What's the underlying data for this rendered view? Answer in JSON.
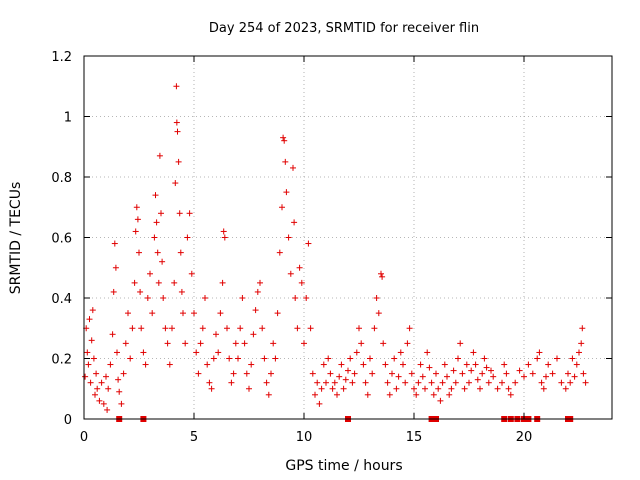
{
  "chart_data": {
    "type": "scatter",
    "title": "Day 254 of 2023, SRMTID for receiver flin",
    "xlabel": "GPS time / hours",
    "ylabel": "SRMTID / TECUs",
    "xlim": [
      0,
      24
    ],
    "ylim": [
      0,
      1.2
    ],
    "xticks": [
      0,
      5,
      10,
      15,
      20
    ],
    "xtick_labels": [
      "0",
      "5",
      "10",
      "15",
      "20"
    ],
    "yticks": [
      0,
      0.2,
      0.4,
      0.6,
      0.8,
      1.0,
      1.2
    ],
    "ytick_labels": [
      "0",
      "0.2",
      "0.4",
      "0.6",
      "0.8",
      "1",
      "1.2"
    ],
    "grid": true,
    "marker": "plus",
    "color": "#e00000",
    "series": [
      {
        "name": "SRMTID",
        "points": [
          [
            0.05,
            0.14
          ],
          [
            0.1,
            0.3
          ],
          [
            0.15,
            0.22
          ],
          [
            0.2,
            0.18
          ],
          [
            0.25,
            0.33
          ],
          [
            0.3,
            0.12
          ],
          [
            0.35,
            0.26
          ],
          [
            0.4,
            0.36
          ],
          [
            0.45,
            0.2
          ],
          [
            0.5,
            0.08
          ],
          [
            0.55,
            0.15
          ],
          [
            0.6,
            0.1
          ],
          [
            0.7,
            0.06
          ],
          [
            0.8,
            0.12
          ],
          [
            0.9,
            0.05
          ],
          [
            1.0,
            0.14
          ],
          [
            1.05,
            0.03
          ],
          [
            1.1,
            0.1
          ],
          [
            1.2,
            0.18
          ],
          [
            1.3,
            0.28
          ],
          [
            1.35,
            0.42
          ],
          [
            1.4,
            0.58
          ],
          [
            1.45,
            0.5
          ],
          [
            1.5,
            0.22
          ],
          [
            1.55,
            0.13
          ],
          [
            1.6,
            0.09
          ],
          [
            1.7,
            0.05
          ],
          [
            1.8,
            0.15
          ],
          [
            1.9,
            0.25
          ],
          [
            2.0,
            0.35
          ],
          [
            2.1,
            0.2
          ],
          [
            2.2,
            0.3
          ],
          [
            2.3,
            0.45
          ],
          [
            2.35,
            0.62
          ],
          [
            2.4,
            0.7
          ],
          [
            2.45,
            0.66
          ],
          [
            2.5,
            0.55
          ],
          [
            2.55,
            0.42
          ],
          [
            2.6,
            0.3
          ],
          [
            2.7,
            0.22
          ],
          [
            2.8,
            0.18
          ],
          [
            2.9,
            0.4
          ],
          [
            3.0,
            0.48
          ],
          [
            3.1,
            0.35
          ],
          [
            3.2,
            0.6
          ],
          [
            3.25,
            0.74
          ],
          [
            3.3,
            0.65
          ],
          [
            3.35,
            0.55
          ],
          [
            3.4,
            0.45
          ],
          [
            3.45,
            0.87
          ],
          [
            3.5,
            0.68
          ],
          [
            3.55,
            0.52
          ],
          [
            3.6,
            0.4
          ],
          [
            3.7,
            0.3
          ],
          [
            3.8,
            0.25
          ],
          [
            3.9,
            0.18
          ],
          [
            4.0,
            0.3
          ],
          [
            4.1,
            0.45
          ],
          [
            4.15,
            0.78
          ],
          [
            4.2,
            1.1
          ],
          [
            4.22,
            0.98
          ],
          [
            4.25,
            0.95
          ],
          [
            4.3,
            0.85
          ],
          [
            4.35,
            0.68
          ],
          [
            4.4,
            0.55
          ],
          [
            4.45,
            0.42
          ],
          [
            4.5,
            0.35
          ],
          [
            4.6,
            0.25
          ],
          [
            4.7,
            0.6
          ],
          [
            4.8,
            0.68
          ],
          [
            4.9,
            0.48
          ],
          [
            5.0,
            0.35
          ],
          [
            5.1,
            0.22
          ],
          [
            5.2,
            0.15
          ],
          [
            5.3,
            0.25
          ],
          [
            5.4,
            0.3
          ],
          [
            5.5,
            0.4
          ],
          [
            5.6,
            0.18
          ],
          [
            5.7,
            0.12
          ],
          [
            5.8,
            0.1
          ],
          [
            5.9,
            0.2
          ],
          [
            6.0,
            0.28
          ],
          [
            6.1,
            0.22
          ],
          [
            6.2,
            0.35
          ],
          [
            6.3,
            0.45
          ],
          [
            6.35,
            0.62
          ],
          [
            6.4,
            0.6
          ],
          [
            6.5,
            0.3
          ],
          [
            6.6,
            0.2
          ],
          [
            6.7,
            0.12
          ],
          [
            6.8,
            0.15
          ],
          [
            6.9,
            0.25
          ],
          [
            7.0,
            0.2
          ],
          [
            7.1,
            0.3
          ],
          [
            7.2,
            0.4
          ],
          [
            7.3,
            0.25
          ],
          [
            7.4,
            0.15
          ],
          [
            7.5,
            0.1
          ],
          [
            7.6,
            0.18
          ],
          [
            7.7,
            0.28
          ],
          [
            7.8,
            0.36
          ],
          [
            7.9,
            0.42
          ],
          [
            8.0,
            0.45
          ],
          [
            8.1,
            0.3
          ],
          [
            8.2,
            0.2
          ],
          [
            8.3,
            0.12
          ],
          [
            8.4,
            0.08
          ],
          [
            8.5,
            0.15
          ],
          [
            8.6,
            0.25
          ],
          [
            8.7,
            0.2
          ],
          [
            8.8,
            0.35
          ],
          [
            8.9,
            0.55
          ],
          [
            9.0,
            0.7
          ],
          [
            9.05,
            0.93
          ],
          [
            9.1,
            0.92
          ],
          [
            9.15,
            0.85
          ],
          [
            9.2,
            0.75
          ],
          [
            9.3,
            0.6
          ],
          [
            9.4,
            0.48
          ],
          [
            9.5,
            0.83
          ],
          [
            9.55,
            0.65
          ],
          [
            9.6,
            0.4
          ],
          [
            9.7,
            0.3
          ],
          [
            9.8,
            0.5
          ],
          [
            9.9,
            0.45
          ],
          [
            10.0,
            0.25
          ],
          [
            10.1,
            0.4
          ],
          [
            10.2,
            0.58
          ],
          [
            10.3,
            0.3
          ],
          [
            10.4,
            0.15
          ],
          [
            10.5,
            0.08
          ],
          [
            10.6,
            0.12
          ],
          [
            10.7,
            0.05
          ],
          [
            10.8,
            0.1
          ],
          [
            10.9,
            0.18
          ],
          [
            11.0,
            0.12
          ],
          [
            11.1,
            0.2
          ],
          [
            11.2,
            0.15
          ],
          [
            11.3,
            0.1
          ],
          [
            11.4,
            0.12
          ],
          [
            11.5,
            0.08
          ],
          [
            11.6,
            0.14
          ],
          [
            11.7,
            0.18
          ],
          [
            11.8,
            0.1
          ],
          [
            11.9,
            0.13
          ],
          [
            12.0,
            0.16
          ],
          [
            12.1,
            0.2
          ],
          [
            12.2,
            0.12
          ],
          [
            12.3,
            0.15
          ],
          [
            12.4,
            0.22
          ],
          [
            12.5,
            0.3
          ],
          [
            12.6,
            0.25
          ],
          [
            12.7,
            0.18
          ],
          [
            12.8,
            0.12
          ],
          [
            12.9,
            0.08
          ],
          [
            13.0,
            0.2
          ],
          [
            13.1,
            0.15
          ],
          [
            13.2,
            0.3
          ],
          [
            13.3,
            0.4
          ],
          [
            13.4,
            0.35
          ],
          [
            13.5,
            0.48
          ],
          [
            13.55,
            0.47
          ],
          [
            13.6,
            0.25
          ],
          [
            13.7,
            0.18
          ],
          [
            13.8,
            0.12
          ],
          [
            13.9,
            0.08
          ],
          [
            14.0,
            0.15
          ],
          [
            14.1,
            0.2
          ],
          [
            14.2,
            0.1
          ],
          [
            14.3,
            0.14
          ],
          [
            14.4,
            0.22
          ],
          [
            14.5,
            0.18
          ],
          [
            14.6,
            0.12
          ],
          [
            14.7,
            0.25
          ],
          [
            14.8,
            0.3
          ],
          [
            14.9,
            0.15
          ],
          [
            15.0,
            0.1
          ],
          [
            15.1,
            0.08
          ],
          [
            15.2,
            0.12
          ],
          [
            15.3,
            0.18
          ],
          [
            15.4,
            0.14
          ],
          [
            15.5,
            0.1
          ],
          [
            15.6,
            0.22
          ],
          [
            15.7,
            0.17
          ],
          [
            15.8,
            0.12
          ],
          [
            15.9,
            0.08
          ],
          [
            16.0,
            0.15
          ],
          [
            16.1,
            0.1
          ],
          [
            16.2,
            0.06
          ],
          [
            16.3,
            0.12
          ],
          [
            16.4,
            0.18
          ],
          [
            16.5,
            0.14
          ],
          [
            16.6,
            0.08
          ],
          [
            16.7,
            0.1
          ],
          [
            16.8,
            0.16
          ],
          [
            16.9,
            0.12
          ],
          [
            17.0,
            0.2
          ],
          [
            17.1,
            0.25
          ],
          [
            17.2,
            0.15
          ],
          [
            17.3,
            0.1
          ],
          [
            17.4,
            0.18
          ],
          [
            17.5,
            0.12
          ],
          [
            17.6,
            0.16
          ],
          [
            17.7,
            0.22
          ],
          [
            17.8,
            0.18
          ],
          [
            17.9,
            0.13
          ],
          [
            18.0,
            0.1
          ],
          [
            18.1,
            0.15
          ],
          [
            18.2,
            0.2
          ],
          [
            18.3,
            0.17
          ],
          [
            18.4,
            0.12
          ],
          [
            18.5,
            0.16
          ],
          [
            18.6,
            0.14
          ],
          [
            18.8,
            0.1
          ],
          [
            19.0,
            0.12
          ],
          [
            19.1,
            0.18
          ],
          [
            19.2,
            0.15
          ],
          [
            19.3,
            0.1
          ],
          [
            19.4,
            0.08
          ],
          [
            19.6,
            0.12
          ],
          [
            19.8,
            0.16
          ],
          [
            20.0,
            0.14
          ],
          [
            20.2,
            0.18
          ],
          [
            20.4,
            0.15
          ],
          [
            20.6,
            0.2
          ],
          [
            20.7,
            0.22
          ],
          [
            20.8,
            0.12
          ],
          [
            20.9,
            0.1
          ],
          [
            21.0,
            0.14
          ],
          [
            21.1,
            0.18
          ],
          [
            21.3,
            0.15
          ],
          [
            21.5,
            0.2
          ],
          [
            21.7,
            0.12
          ],
          [
            21.9,
            0.1
          ],
          [
            22.0,
            0.15
          ],
          [
            22.1,
            0.12
          ],
          [
            22.2,
            0.2
          ],
          [
            22.3,
            0.14
          ],
          [
            22.4,
            0.18
          ],
          [
            22.5,
            0.22
          ],
          [
            22.6,
            0.25
          ],
          [
            22.65,
            0.3
          ],
          [
            22.7,
            0.15
          ],
          [
            22.8,
            0.12
          ]
        ]
      }
    ],
    "gap_markers": {
      "name": "data gaps",
      "marker": "square",
      "y": 0,
      "x": [
        1.6,
        2.7,
        12.0,
        15.8,
        16.0,
        19.1,
        19.4,
        19.7,
        20.0,
        20.2,
        20.6,
        22.0,
        22.1
      ]
    }
  }
}
